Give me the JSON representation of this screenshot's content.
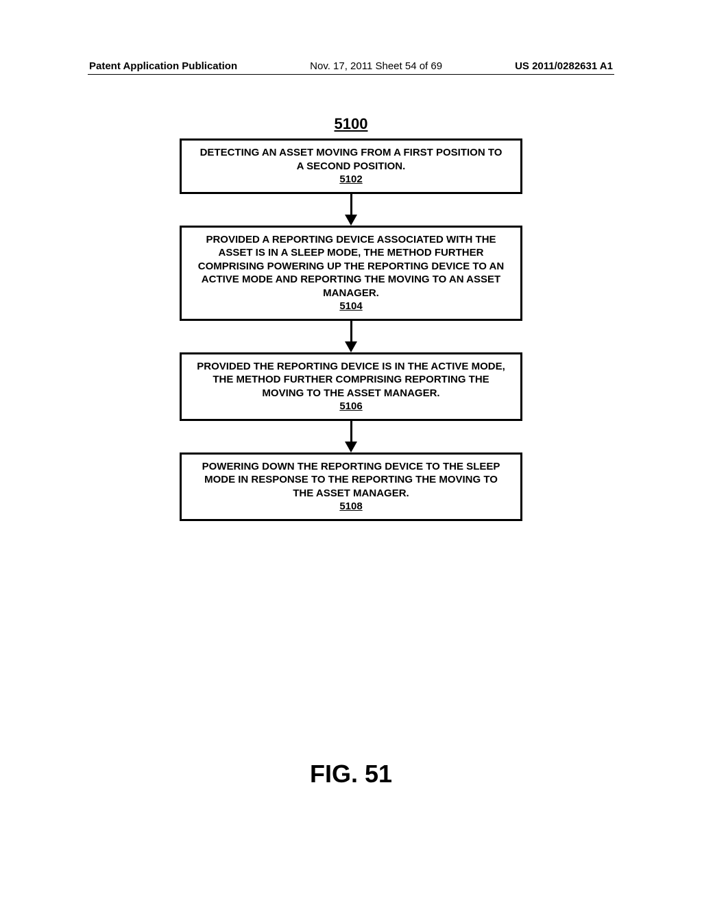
{
  "header": {
    "left": "Patent Application Publication",
    "center": "Nov. 17, 2011  Sheet 54 of 69",
    "right": "US 2011/0282631 A1"
  },
  "figure_number": "5100",
  "flowchart": {
    "type": "flowchart",
    "box_border_color": "#000000",
    "box_border_width": 3,
    "background_color": "#ffffff",
    "text_color": "#000000",
    "font_size": 15,
    "font_weight": "bold",
    "arrow_color": "#000000",
    "arrow_width": 3,
    "boxes": [
      {
        "text": "DETECTING AN ASSET MOVING FROM A FIRST POSITION TO A SECOND POSITION.",
        "ref": "5102"
      },
      {
        "text": "PROVIDED A REPORTING DEVICE ASSOCIATED WITH THE ASSET IS IN A SLEEP MODE, THE METHOD FURTHER COMPRISING POWERING UP THE REPORTING DEVICE TO AN ACTIVE MODE AND REPORTING THE MOVING TO AN ASSET MANAGER.",
        "ref": "5104"
      },
      {
        "text": "PROVIDED THE REPORTING DEVICE IS IN THE ACTIVE MODE, THE METHOD FURTHER COMPRISING REPORTING THE MOVING TO THE ASSET MANAGER.",
        "ref": "5106"
      },
      {
        "text": "POWERING DOWN THE REPORTING DEVICE TO THE SLEEP MODE IN RESPONSE TO THE REPORTING THE MOVING TO THE ASSET MANAGER.",
        "ref": "5108"
      }
    ]
  },
  "figure_caption": "FIG. 51"
}
